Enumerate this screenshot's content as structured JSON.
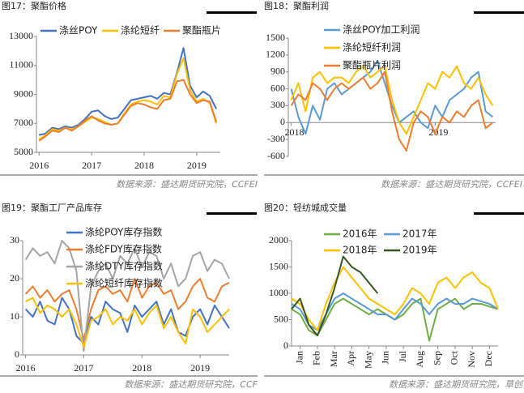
{
  "chart_data": [
    {
      "type": "line",
      "title": "图17：聚酯价格",
      "note": "数据来源：盛达期货研究院，CCFEI",
      "x": [
        2016,
        2016.125,
        2016.25,
        2016.375,
        2016.5,
        2016.625,
        2016.75,
        2016.875,
        2017,
        2017.125,
        2017.25,
        2017.375,
        2017.5,
        2017.625,
        2017.75,
        2017.875,
        2018,
        2018.125,
        2018.25,
        2018.375,
        2018.5,
        2018.625,
        2018.75,
        2018.875,
        2019,
        2019.125,
        2019.25,
        2019.375
      ],
      "series": [
        {
          "name": "涤丝POY",
          "color": "#4472c4",
          "values": [
            6200,
            6300,
            6700,
            6600,
            6800,
            6700,
            6900,
            7300,
            7800,
            7900,
            7500,
            7300,
            7400,
            8000,
            8600,
            8700,
            8800,
            8900,
            8700,
            9100,
            9000,
            10500,
            12200,
            9600,
            8800,
            9200,
            8900,
            8000
          ]
        },
        {
          "name": "涤纶短纤",
          "color": "#ffc000",
          "values": [
            5900,
            6200,
            6600,
            6500,
            6700,
            6600,
            6800,
            7100,
            7400,
            7300,
            7100,
            6900,
            7000,
            7700,
            8300,
            8500,
            8600,
            8500,
            8300,
            8900,
            8800,
            10400,
            11500,
            9300,
            8500,
            8700,
            8400,
            7000
          ]
        },
        {
          "name": "聚酯瓶片",
          "color": "#ed7d31",
          "values": [
            5800,
            6100,
            6500,
            6400,
            6700,
            6500,
            6800,
            7200,
            7500,
            7200,
            7000,
            6900,
            7000,
            7600,
            8200,
            8400,
            8300,
            8100,
            8000,
            8600,
            8700,
            9900,
            10000,
            9000,
            8400,
            8600,
            8500,
            7100
          ]
        }
      ],
      "xlim": [
        2015.95,
        2019.45
      ],
      "xticks": [
        2016,
        2017,
        2018,
        2019
      ],
      "ylim": [
        5000,
        13000
      ],
      "yticks": [
        5000,
        7000,
        9000,
        11000,
        13000
      ]
    },
    {
      "type": "line",
      "title": "图18：聚酯利润",
      "note": "数据来源：盛达期货研究院，CCFEI",
      "x": [
        2018,
        2018.05,
        2018.1,
        2018.15,
        2018.2,
        2018.25,
        2018.3,
        2018.35,
        2018.4,
        2018.45,
        2018.5,
        2018.55,
        2018.6,
        2018.65,
        2018.7,
        2018.75,
        2018.8,
        2018.85,
        2018.9,
        2018.95,
        2019,
        2019.05,
        2019.1,
        2019.15,
        2019.2,
        2019.25,
        2019.3,
        2019.35,
        2019.4
      ],
      "series": [
        {
          "name": "涤丝POY加工利润",
          "color": "#5b9bd5",
          "values": [
            600,
            100,
            -200,
            300,
            50,
            600,
            700,
            500,
            600,
            700,
            800,
            900,
            1100,
            700,
            300,
            0,
            100,
            200,
            0,
            -100,
            300,
            100,
            400,
            500,
            600,
            800,
            900,
            200,
            100
          ]
        },
        {
          "name": "涤纶短纤利润",
          "color": "#ffc000",
          "values": [
            400,
            700,
            200,
            800,
            900,
            700,
            800,
            800,
            700,
            900,
            1000,
            800,
            900,
            1000,
            400,
            0,
            -200,
            100,
            400,
            700,
            600,
            900,
            800,
            1000,
            700,
            600,
            800,
            500,
            300
          ]
        },
        {
          "name": "聚酯瓶片利润",
          "color": "#ed7d31",
          "values": [
            300,
            500,
            400,
            700,
            600,
            400,
            600,
            700,
            600,
            700,
            800,
            600,
            700,
            900,
            200,
            -300,
            -500,
            0,
            200,
            100,
            -200,
            100,
            0,
            200,
            100,
            300,
            400,
            -100,
            0
          ]
        }
      ],
      "xlim": [
        2017.98,
        2019.42
      ],
      "xticks": [
        2018,
        2019
      ],
      "ylim": [
        -600,
        1500
      ],
      "yticks": [
        -600,
        -300,
        0,
        300,
        600,
        900,
        1200,
        1500
      ]
    },
    {
      "type": "line",
      "title": "图19：聚酯工厂产品库存",
      "note": "数据来源：盛达期货研究院，CCF",
      "x": [
        2016,
        2016.125,
        2016.25,
        2016.375,
        2016.5,
        2016.625,
        2016.75,
        2016.875,
        2017,
        2017.125,
        2017.25,
        2017.375,
        2017.5,
        2017.625,
        2017.75,
        2017.875,
        2018,
        2018.125,
        2018.25,
        2018.375,
        2018.5,
        2018.625,
        2018.75,
        2018.875,
        2019,
        2019.125,
        2019.25,
        2019.375,
        2019.5
      ],
      "series": [
        {
          "name": "涤纶POY库存指数",
          "color": "#4472c4",
          "values": [
            12,
            10,
            14,
            9,
            8,
            15,
            12,
            5,
            3,
            10,
            8,
            14,
            12,
            11,
            6,
            13,
            10,
            12,
            14,
            8,
            12,
            6,
            5,
            10,
            12,
            8,
            13,
            10,
            7
          ]
        },
        {
          "name": "涤纶FDY库存指数",
          "color": "#ed7d31",
          "values": [
            16,
            18,
            15,
            17,
            14,
            16,
            17,
            12,
            4,
            12,
            17,
            18,
            16,
            17,
            14,
            20,
            15,
            18,
            19,
            16,
            17,
            12,
            14,
            18,
            20,
            15,
            14,
            18,
            19
          ]
        },
        {
          "name": "涤纶DTY库存指数",
          "color": "#a5a5a5",
          "values": [
            25,
            28,
            26,
            27,
            24,
            30,
            28,
            22,
            1,
            18,
            22,
            24,
            20,
            26,
            24,
            28,
            23,
            27,
            26,
            20,
            24,
            18,
            20,
            26,
            27,
            22,
            25,
            24,
            20
          ]
        },
        {
          "name": "涤纶短纤库存指数",
          "color": "#ffc000",
          "values": [
            14,
            15,
            11,
            13,
            12,
            10,
            12,
            8,
            2,
            9,
            10,
            12,
            8,
            10,
            9,
            12,
            8,
            11,
            13,
            7,
            10,
            6,
            3,
            12,
            10,
            6,
            8,
            10,
            12
          ]
        }
      ],
      "xlim": [
        2015.95,
        2019.5
      ],
      "xticks": [
        2016,
        2017,
        2018,
        2019
      ],
      "ylim": [
        0,
        30
      ],
      "yticks": [
        0,
        10,
        20,
        30
      ]
    },
    {
      "type": "line",
      "title": "图20：轻纺城成交量",
      "note": "数据来源：盛达期货研究院，草创",
      "x": [
        0,
        0.5,
        1,
        1.5,
        2,
        2.5,
        3,
        3.5,
        4,
        4.5,
        5,
        5.5,
        6,
        6.5,
        7,
        7.5,
        8,
        8.5,
        9,
        9.5,
        10,
        10.5,
        11,
        11.5,
        12
      ],
      "series": [
        {
          "name": "2016年",
          "color": "#70ad47",
          "values": [
            700,
            600,
            300,
            200,
            500,
            800,
            900,
            800,
            700,
            600,
            700,
            600,
            500,
            600,
            800,
            900,
            100,
            700,
            800,
            900,
            700,
            800,
            800,
            750,
            700
          ]
        },
        {
          "name": "2017年",
          "color": "#5b9bd5",
          "values": [
            800,
            700,
            400,
            300,
            600,
            900,
            1000,
            900,
            800,
            700,
            600,
            600,
            500,
            700,
            900,
            800,
            600,
            800,
            900,
            800,
            800,
            900,
            850,
            800,
            700
          ]
        },
        {
          "name": "2018年",
          "color": "#ffc000",
          "values": [
            900,
            800,
            500,
            300,
            800,
            1200,
            1500,
            1300,
            1100,
            900,
            800,
            700,
            600,
            800,
            1100,
            1000,
            800,
            1200,
            1300,
            1100,
            1300,
            1400,
            1200,
            1100,
            700
          ]
        },
        {
          "name": "2019年",
          "color": "#375623",
          "values": [
            700,
            900,
            400,
            200,
            600,
            1100,
            1700,
            1500,
            1400,
            1200,
            1000,
            null,
            null,
            null,
            null,
            null,
            null,
            null,
            null,
            null,
            null,
            null,
            null,
            null,
            null
          ]
        }
      ],
      "xlim": [
        0,
        12
      ],
      "xticks": [
        {
          "value": 0.5,
          "label": "Jan"
        },
        {
          "value": 1.5,
          "label": "Feb"
        },
        {
          "value": 2.5,
          "label": "Mar"
        },
        {
          "value": 3.5,
          "label": "Apr"
        },
        {
          "value": 4.5,
          "label": "May"
        },
        {
          "value": 5.5,
          "label": "Jun"
        },
        {
          "value": 6.5,
          "label": "Jul"
        },
        {
          "value": 7.5,
          "label": "Aug"
        },
        {
          "value": 8.5,
          "label": "Sep"
        },
        {
          "value": 9.5,
          "label": "Oct"
        },
        {
          "value": 10.5,
          "label": "Nov"
        },
        {
          "value": 11.5,
          "label": "Dec"
        }
      ],
      "ylim": [
        0,
        2000
      ],
      "yticks": [
        0,
        500,
        1000,
        1500,
        2000
      ]
    }
  ]
}
